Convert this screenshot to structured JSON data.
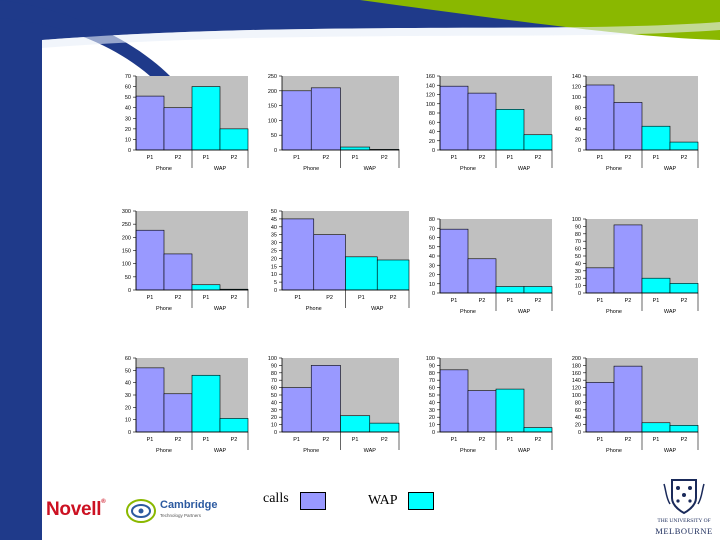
{
  "colors": {
    "calls": "#9999ff",
    "wap": "#00ffff",
    "plot_bg": "#c0c0c0",
    "frame_blue": "#1f3a8a",
    "frame_green": "#8ab800"
  },
  "legend": {
    "calls_label": "calls",
    "wap_label": "WAP"
  },
  "logos": {
    "novell": "Novell",
    "cambridge": "Cambridge",
    "cambridge_sub": "Technology Partners",
    "melbourne_line1": "THE UNIVERSITY OF",
    "melbourne_line2": "MELBOURNE"
  },
  "chart_data": [
    {
      "type": "bar",
      "categories": [
        "P1",
        "P2",
        "P1",
        "P2"
      ],
      "groups": [
        "Phone",
        "WAP"
      ],
      "values": [
        51,
        40,
        60,
        20
      ],
      "ylim": [
        0,
        70
      ],
      "yticks": [
        0,
        10,
        20,
        30,
        40,
        50,
        60,
        70
      ]
    },
    {
      "type": "bar",
      "categories": [
        "P1",
        "P2",
        "P1",
        "P2"
      ],
      "groups": [
        "Phone",
        "WAP"
      ],
      "values": [
        200,
        210,
        10,
        2
      ],
      "ylim": [
        0,
        250
      ],
      "yticks": [
        0,
        50,
        100,
        150,
        200,
        250
      ]
    },
    {
      "type": "bar",
      "categories": [
        "P1",
        "P2",
        "P1",
        "P2"
      ],
      "groups": [
        "Phone",
        "WAP"
      ],
      "values": [
        138,
        123,
        88,
        33
      ],
      "ylim": [
        0,
        160
      ],
      "yticks": [
        0,
        20,
        40,
        60,
        80,
        100,
        120,
        140,
        160
      ]
    },
    {
      "type": "bar",
      "categories": [
        "P1",
        "P2",
        "P1",
        "P2"
      ],
      "groups": [
        "Phone",
        "WAP"
      ],
      "values": [
        123,
        90,
        45,
        15
      ],
      "ylim": [
        0,
        140
      ],
      "yticks": [
        0,
        20,
        40,
        60,
        80,
        100,
        120,
        140
      ]
    },
    {
      "type": "bar",
      "categories": [
        "P1",
        "P2",
        "P1",
        "P2"
      ],
      "groups": [
        "Phone",
        "WAP"
      ],
      "values": [
        227,
        137,
        20,
        3
      ],
      "ylim": [
        0,
        300
      ],
      "yticks": [
        0,
        50,
        100,
        150,
        200,
        250,
        300
      ]
    },
    {
      "type": "bar",
      "categories": [
        "P1",
        "P2",
        "P1",
        "P2"
      ],
      "groups": [
        "Phone",
        "WAP"
      ],
      "values": [
        45,
        35,
        21,
        19
      ],
      "ylim": [
        0,
        50
      ],
      "yticks": [
        0,
        5,
        10,
        15,
        20,
        25,
        30,
        35,
        40,
        45,
        50
      ]
    },
    {
      "type": "bar",
      "categories": [
        "P1",
        "P2",
        "P1",
        "P2"
      ],
      "groups": [
        "Phone",
        "WAP"
      ],
      "values": [
        69,
        37,
        7,
        7
      ],
      "ylim": [
        0,
        80
      ],
      "yticks": [
        0,
        10,
        20,
        30,
        40,
        50,
        60,
        70,
        80
      ]
    },
    {
      "type": "bar",
      "categories": [
        "P1",
        "P2",
        "P1",
        "P2"
      ],
      "groups": [
        "Phone",
        "WAP"
      ],
      "values": [
        34,
        92,
        20,
        13
      ],
      "ylim": [
        0,
        100
      ],
      "yticks": [
        0,
        10,
        20,
        30,
        40,
        50,
        60,
        70,
        80,
        90,
        100
      ]
    },
    {
      "type": "bar",
      "categories": [
        "P1",
        "P2",
        "P1",
        "P2"
      ],
      "groups": [
        "Phone",
        "WAP"
      ],
      "values": [
        52,
        31,
        46,
        11
      ],
      "ylim": [
        0,
        60
      ],
      "yticks": [
        0,
        10,
        20,
        30,
        40,
        50,
        60
      ]
    },
    {
      "type": "bar",
      "categories": [
        "P1",
        "P2",
        "P1",
        "P2"
      ],
      "groups": [
        "Phone",
        "WAP"
      ],
      "values": [
        60,
        90,
        22,
        12
      ],
      "ylim": [
        0,
        100
      ],
      "yticks": [
        0,
        10,
        20,
        30,
        40,
        50,
        60,
        70,
        80,
        90,
        100
      ]
    },
    {
      "type": "bar",
      "categories": [
        "P1",
        "P2",
        "P1",
        "P2"
      ],
      "groups": [
        "Phone",
        "WAP"
      ],
      "values": [
        84,
        56,
        58,
        6
      ],
      "ylim": [
        0,
        100
      ],
      "yticks": [
        0,
        10,
        20,
        30,
        40,
        50,
        60,
        70,
        80,
        90,
        100
      ]
    },
    {
      "type": "bar",
      "categories": [
        "P1",
        "P2",
        "P1",
        "P2"
      ],
      "groups": [
        "Phone",
        "WAP"
      ],
      "values": [
        134,
        178,
        25,
        18
      ],
      "ylim": [
        0,
        200
      ],
      "yticks": [
        0,
        20,
        40,
        60,
        80,
        100,
        120,
        140,
        160,
        180,
        200
      ]
    }
  ]
}
